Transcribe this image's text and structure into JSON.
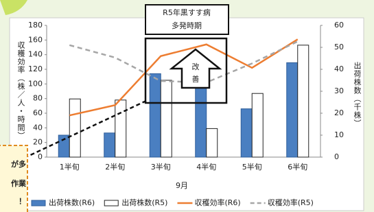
{
  "chart_data": {
    "type": "bar",
    "categories": [
      "1半旬",
      "2半旬",
      "3半旬",
      "4半旬",
      "5半旬",
      "6半旬"
    ],
    "x_label": "9月",
    "y_label": "収穫効率（株／人・時間）",
    "y2_label": "出荷株数（千株）",
    "ylim": [
      0,
      180
    ],
    "yticks": [
      0,
      20,
      40,
      60,
      80,
      100,
      120,
      140,
      160,
      180
    ],
    "y2lim": [
      0,
      60
    ],
    "y2ticks": [
      0,
      10,
      20,
      30,
      40,
      50,
      60
    ],
    "grid": false,
    "series": [
      {
        "name": "出荷株数(R6)",
        "type": "bar",
        "axis": "y2",
        "color": "#4a7fc1",
        "values": [
          10,
          11,
          38,
          32,
          22,
          43
        ]
      },
      {
        "name": "出荷株数(R5)",
        "type": "bar",
        "axis": "y2",
        "color": "#ffffff",
        "values": [
          26.5,
          26,
          35,
          13,
          29,
          51
        ]
      },
      {
        "name": "収穫効率(R6)",
        "type": "line",
        "color": "#ed7d31",
        "dashed": false,
        "values": [
          57,
          71,
          138,
          154,
          122,
          161
        ]
      },
      {
        "name": "収穫効率(R5)",
        "type": "line",
        "color": "#a6a6a6",
        "dashed": true,
        "values": [
          153,
          136,
          104,
          102,
          128,
          158
        ]
      }
    ],
    "annotations": {
      "period": [
        "R5年黒すす病",
        "多発時期"
      ],
      "arrow": [
        "改",
        "善"
      ],
      "callout": [
        "が多",
        "作業",
        "！"
      ]
    }
  }
}
